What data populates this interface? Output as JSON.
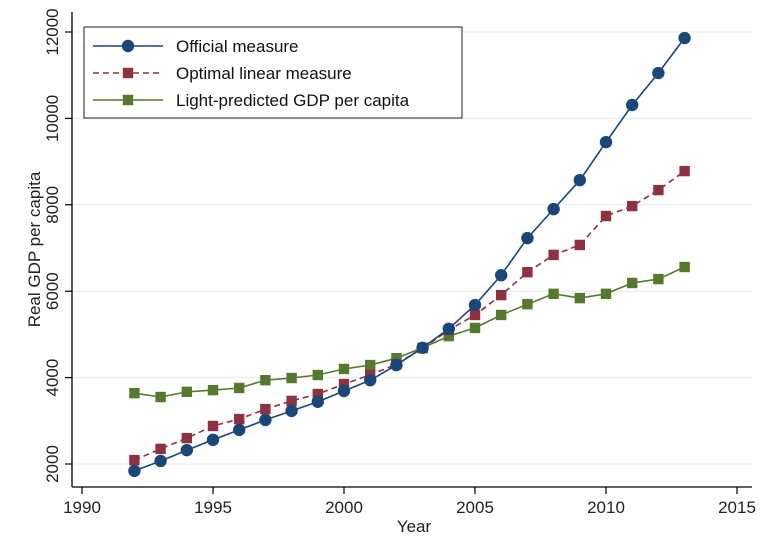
{
  "chart_data": {
    "type": "line",
    "title": "",
    "xlabel": "Year",
    "ylabel": "Real GDP per capita",
    "xlim": [
      1990,
      2015
    ],
    "ylim": [
      1700,
      12300
    ],
    "xticks": [
      1990,
      1995,
      2000,
      2005,
      2010,
      2015
    ],
    "yticks": [
      2000,
      4000,
      6000,
      8000,
      10000,
      12000
    ],
    "xtick_labels": [
      "1990",
      "1995",
      "2000",
      "2005",
      "2010",
      "2015"
    ],
    "ytick_labels": [
      "2000",
      "4000",
      "6000",
      "8000",
      "10000",
      "12000"
    ],
    "grid": "horizontal",
    "legend_position": "top-left",
    "x": [
      1992,
      1993,
      1994,
      1995,
      1996,
      1997,
      1998,
      1999,
      2000,
      2001,
      2002,
      2003,
      2004,
      2005,
      2006,
      2007,
      2008,
      2009,
      2010,
      2011,
      2012,
      2013
    ],
    "series": [
      {
        "name": "Official measure",
        "color": "#1a4778",
        "marker": "circle",
        "line": "solid",
        "values": [
          1840,
          2070,
          2320,
          2560,
          2790,
          3020,
          3230,
          3440,
          3690,
          3940,
          4290,
          4690,
          5130,
          5680,
          6370,
          7230,
          7900,
          8570,
          9450,
          10310,
          11050,
          11860
        ]
      },
      {
        "name": "Optimal linear measure",
        "color": "#8e3140",
        "marker": "square",
        "line": "dashed",
        "values": [
          2090,
          2350,
          2600,
          2880,
          3040,
          3270,
          3460,
          3620,
          3850,
          4060,
          4310,
          4680,
          5100,
          5450,
          5910,
          6440,
          6840,
          7070,
          7740,
          7970,
          8340,
          8780
        ]
      },
      {
        "name": "Light-predicted GDP per capita",
        "color": "#557a2f",
        "marker": "square",
        "line": "solid",
        "values": [
          3640,
          3550,
          3670,
          3710,
          3760,
          3940,
          3990,
          4060,
          4200,
          4290,
          4450,
          4690,
          4960,
          5150,
          5450,
          5700,
          5940,
          5840,
          5940,
          6190,
          6280,
          6560
        ]
      }
    ]
  }
}
